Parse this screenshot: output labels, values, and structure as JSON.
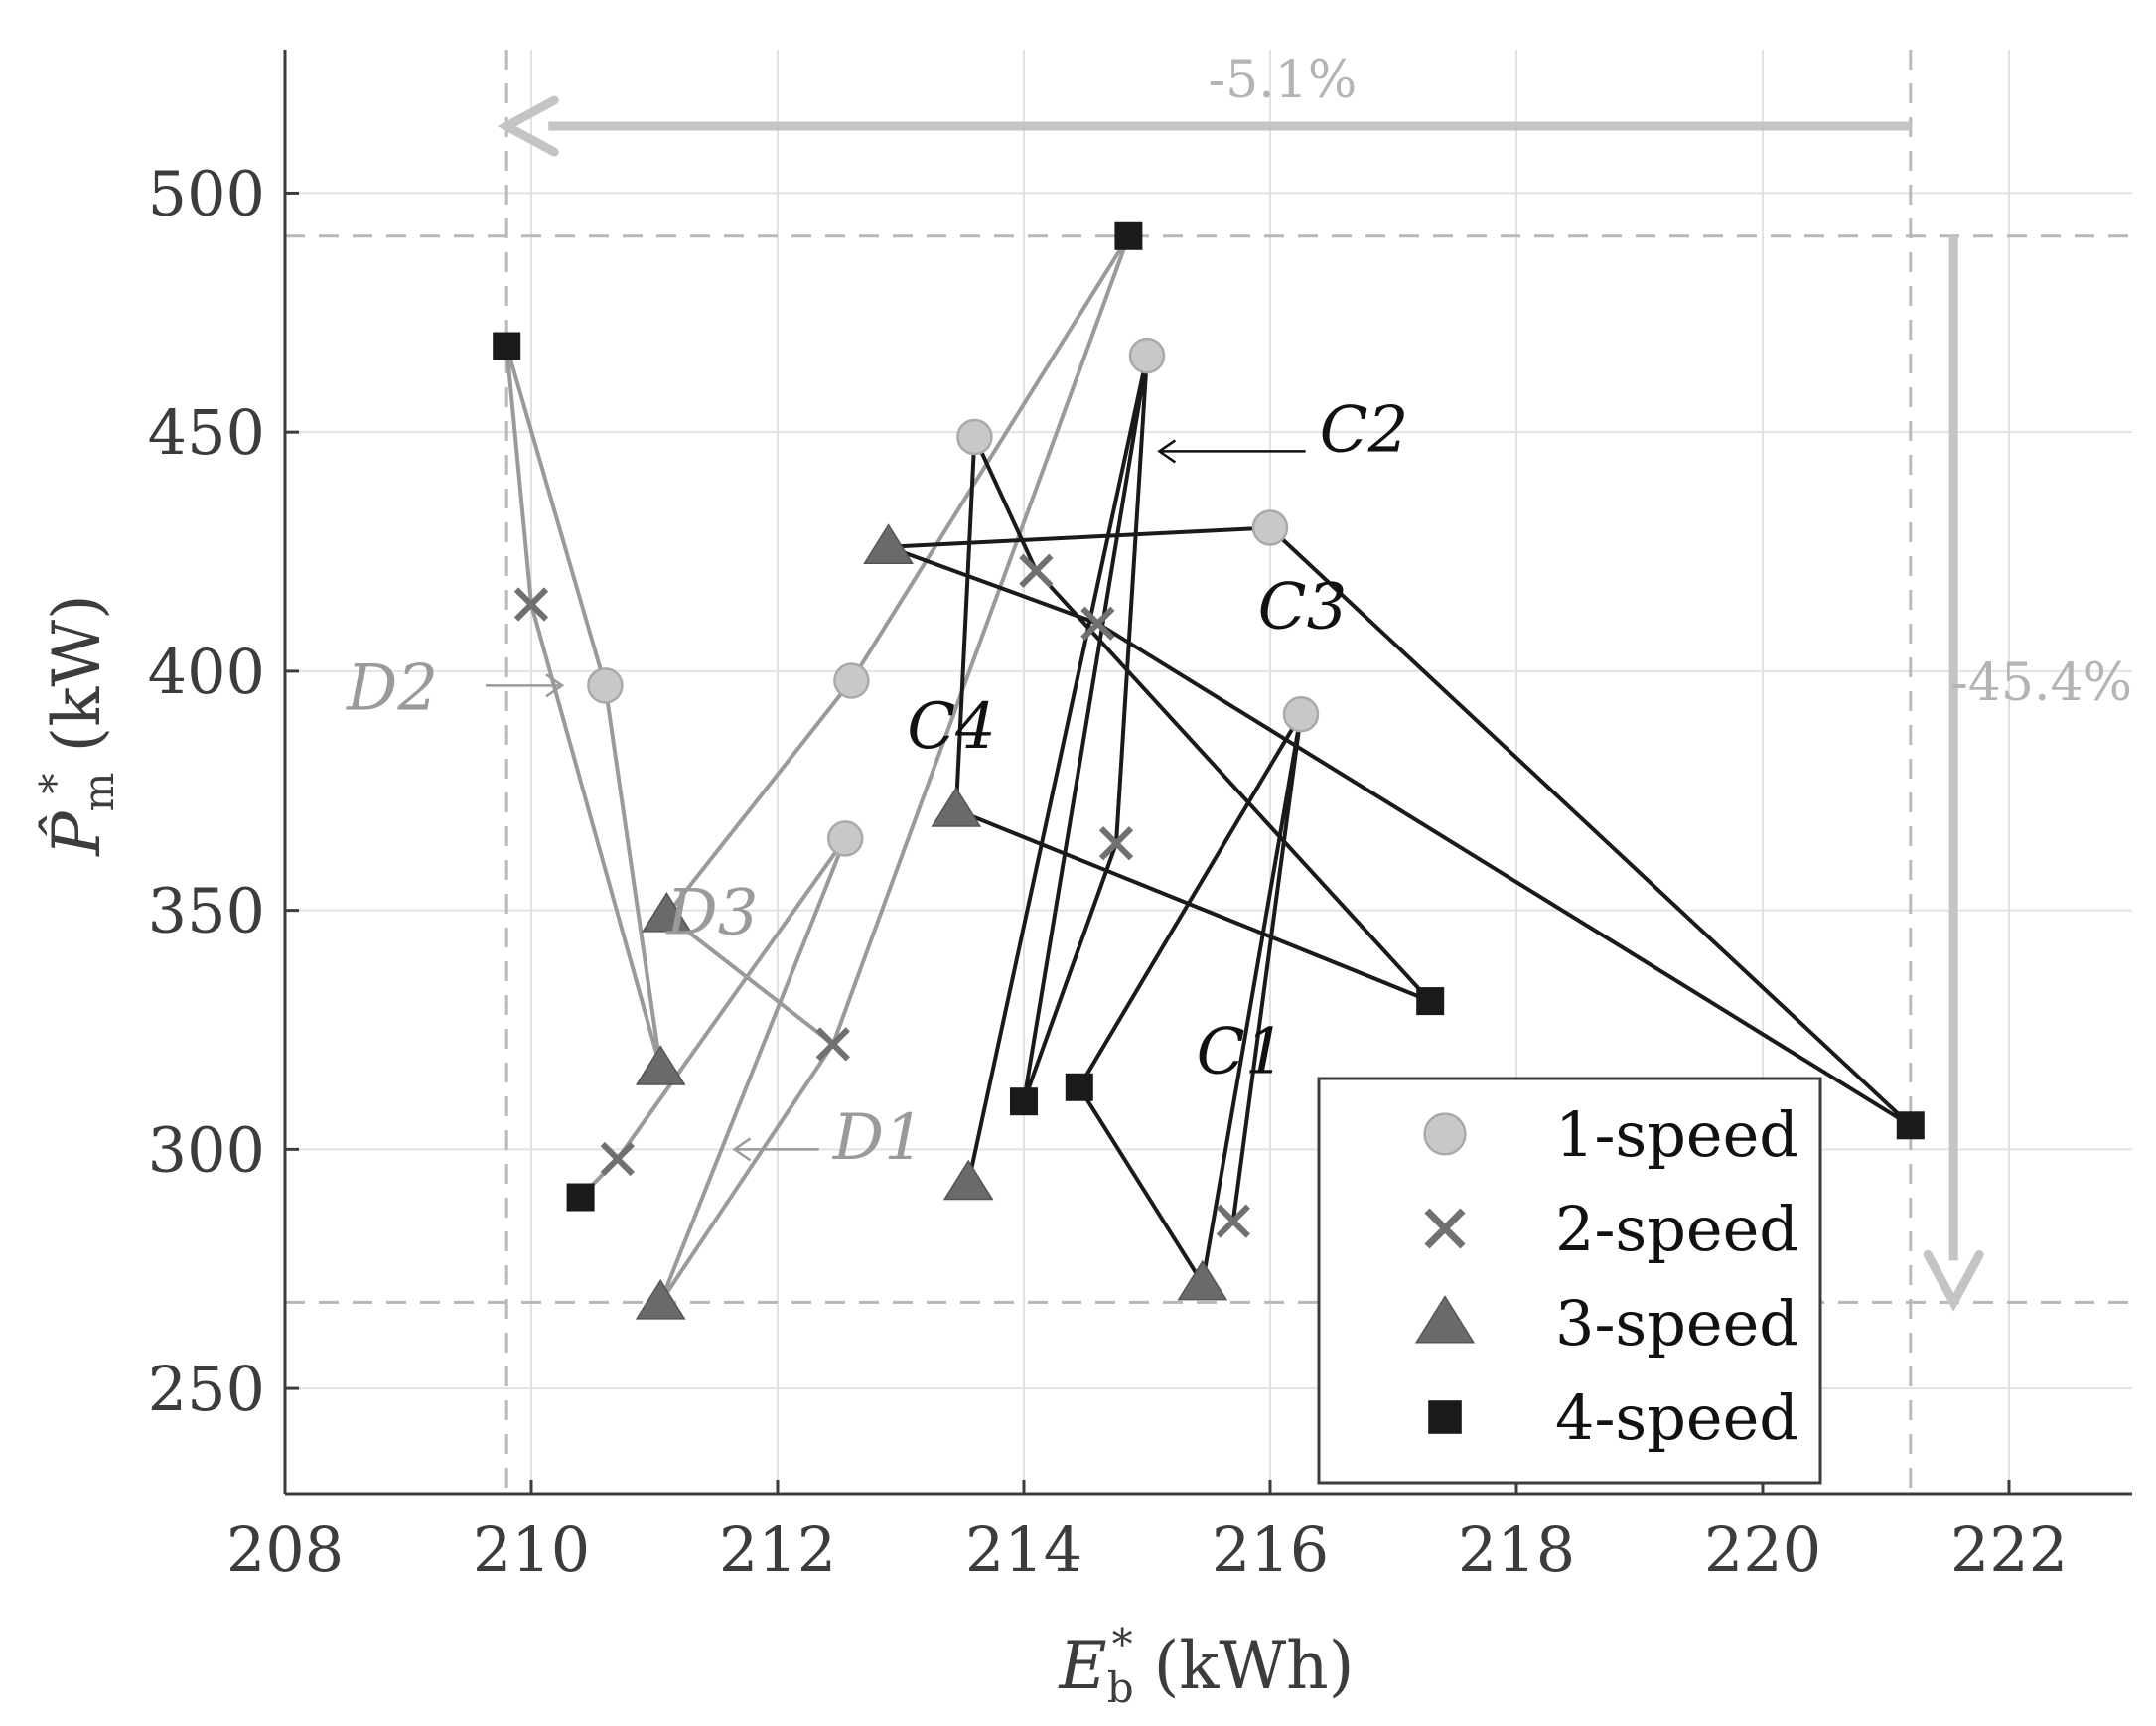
{
  "chart_data": {
    "type": "scatter",
    "xlabel": "E*_b (kWh)",
    "ylabel": "P̂*_m (kW)",
    "xlabel_parts": {
      "main": "E",
      "sub": "b",
      "sup": "*",
      "unit": " (kWh)"
    },
    "ylabel_parts": {
      "main": "P̂",
      "sub": "m",
      "sup": "*",
      "unit": " (kW)"
    },
    "xlim": [
      208,
      223
    ],
    "ylim": [
      228,
      530
    ],
    "xticks": [
      208,
      210,
      212,
      214,
      216,
      218,
      220,
      222
    ],
    "yticks": [
      250,
      300,
      350,
      400,
      450,
      500
    ],
    "grid": true,
    "legend_position": "bottom-right",
    "series": [
      {
        "name": "1-speed",
        "marker": "circle",
        "color": "#c8c8c8",
        "points": [
          [
            210.6,
            397
          ],
          [
            212.6,
            398
          ],
          [
            212.55,
            365
          ],
          [
            213.6,
            449
          ],
          [
            215.0,
            466
          ],
          [
            216.0,
            430
          ],
          [
            216.25,
            391
          ]
        ]
      },
      {
        "name": "2-speed",
        "marker": "x",
        "color": "#707070",
        "points": [
          [
            210.0,
            414
          ],
          [
            210.7,
            298
          ],
          [
            212.45,
            322
          ],
          [
            214.1,
            421
          ],
          [
            214.6,
            410
          ],
          [
            214.75,
            364
          ],
          [
            215.7,
            285
          ]
        ]
      },
      {
        "name": "3-speed",
        "marker": "triangle",
        "color": "#6a6a6a",
        "points": [
          [
            211.05,
            317
          ],
          [
            211.1,
            349
          ],
          [
            211.05,
            268
          ],
          [
            212.9,
            426
          ],
          [
            213.45,
            371
          ],
          [
            213.55,
            293
          ],
          [
            215.45,
            272
          ]
        ]
      },
      {
        "name": "4-speed",
        "marker": "square",
        "color": "#1a1a1a",
        "points": [
          [
            209.8,
            468
          ],
          [
            210.4,
            290
          ],
          [
            214.85,
            491
          ],
          [
            214.0,
            310
          ],
          [
            214.45,
            313
          ],
          [
            217.3,
            331
          ],
          [
            221.2,
            305
          ]
        ]
      }
    ],
    "curves": [
      {
        "label": "D1",
        "color": "#9a9a9a",
        "points": [
          [
            214.85,
            491
          ],
          [
            212.45,
            322
          ],
          [
            211.05,
            268
          ],
          [
            212.55,
            365
          ],
          [
            210.7,
            298
          ],
          [
            210.4,
            290
          ]
        ]
      },
      {
        "label": "D2",
        "color": "#9a9a9a",
        "points": [
          [
            209.8,
            468
          ],
          [
            210.6,
            397
          ],
          [
            211.05,
            317
          ],
          [
            210.0,
            414
          ],
          [
            209.8,
            468
          ]
        ]
      },
      {
        "label": "D3",
        "color": "#9a9a9a",
        "points": [
          [
            214.85,
            491
          ],
          [
            212.6,
            398
          ],
          [
            211.1,
            349
          ],
          [
            212.45,
            322
          ]
        ]
      },
      {
        "label": "C1",
        "color": "#1a1a1a",
        "points": [
          [
            214.45,
            313
          ],
          [
            216.25,
            391
          ],
          [
            215.7,
            285
          ],
          [
            216.25,
            391
          ],
          [
            215.45,
            272
          ],
          [
            214.45,
            313
          ]
        ]
      },
      {
        "label": "C2",
        "color": "#1a1a1a",
        "points": [
          [
            213.55,
            293
          ],
          [
            215.0,
            466
          ],
          [
            214.75,
            364
          ],
          [
            214.0,
            310
          ],
          [
            215.0,
            466
          ]
        ]
      },
      {
        "label": "C3",
        "color": "#1a1a1a",
        "points": [
          [
            212.9,
            426
          ],
          [
            216.0,
            430
          ],
          [
            221.2,
            305
          ],
          [
            214.6,
            410
          ],
          [
            212.9,
            426
          ]
        ]
      },
      {
        "label": "C4",
        "color": "#1a1a1a",
        "points": [
          [
            213.6,
            449
          ],
          [
            213.45,
            371
          ],
          [
            217.3,
            331
          ],
          [
            214.1,
            421
          ],
          [
            213.6,
            449
          ]
        ]
      }
    ],
    "reference_lines": {
      "x": [
        209.8,
        221.2
      ],
      "y": [
        491,
        268
      ]
    },
    "annotations": [
      {
        "text": "C1",
        "x": 215.4,
        "y": 316,
        "style": "dark"
      },
      {
        "text": "C2",
        "x": 216.4,
        "y": 446,
        "style": "dark",
        "arrow_to": [
          215.1,
          446
        ]
      },
      {
        "text": "C3",
        "x": 215.9,
        "y": 409,
        "style": "dark"
      },
      {
        "text": "C4",
        "x": 213.05,
        "y": 384,
        "style": "dark"
      },
      {
        "text": "D1",
        "x": 212.45,
        "y": 298,
        "style": "light",
        "arrow_to": [
          211.65,
          300
        ]
      },
      {
        "text": "D2",
        "x": 208.5,
        "y": 392,
        "style": "light",
        "arrow_to": [
          210.25,
          397
        ]
      },
      {
        "text": "D3",
        "x": 211.1,
        "y": 345,
        "style": "light"
      },
      {
        "text": "-5.1%",
        "x": 216.1,
        "y": 520,
        "style": "pct",
        "arrow_from": [
          221.2,
          514
        ],
        "arrow_to": [
          209.8,
          514
        ]
      },
      {
        "text": "-45.4%",
        "x": 223.0,
        "y": 394,
        "style": "pct",
        "arrow_from": [
          221.55,
          491
        ],
        "arrow_to": [
          221.55,
          268
        ]
      }
    ]
  }
}
